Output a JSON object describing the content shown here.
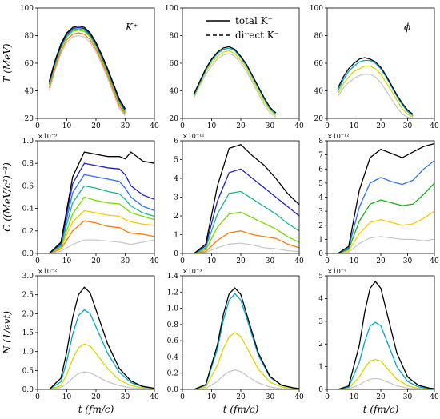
{
  "legend": {
    "solid_label": "total K⁻",
    "dashed_label": "direct K⁻"
  },
  "colors": [
    "#c8c8c8",
    "#e8151c",
    "#ff7a00",
    "#ffc800",
    "#d8d800",
    "#7ad800",
    "#15b015",
    "#18b58a",
    "#00a6c8",
    "#2d6ff2",
    "#2020c0",
    "#6a0aa8",
    "#000000"
  ],
  "panel_labels": [
    "K⁺",
    "ϕ"
  ],
  "axes": {
    "xlabel": "t (fm/c)",
    "ylabels": [
      "T (MeV)",
      "C ((MeV/c²)⁻³)",
      "N (1/evt)"
    ],
    "xticks": [
      "0",
      "10",
      "20",
      "30",
      "40"
    ]
  },
  "chart_data": [
    {
      "type": "line",
      "panel": "K+ temperature",
      "ylim": [
        20,
        100
      ],
      "yticks": [
        "20",
        "40",
        "60",
        "80",
        "100"
      ],
      "exponent": "",
      "x": [
        4,
        6,
        8,
        10,
        12,
        14,
        16,
        18,
        20,
        22,
        24,
        26,
        28,
        30
      ],
      "series": [
        {
          "values": [
            40,
            55,
            67,
            75,
            79,
            80,
            79,
            75,
            68,
            59,
            49,
            38,
            27,
            22
          ]
        },
        {
          "values": [
            42,
            57,
            69,
            77,
            81,
            82,
            81,
            77,
            70,
            61,
            51,
            40,
            29,
            23
          ]
        },
        {
          "values": [
            44,
            59,
            71,
            79,
            83,
            84,
            83,
            79,
            72,
            63,
            53,
            42,
            31,
            24
          ]
        },
        {
          "values": [
            45,
            60,
            72,
            80,
            84,
            85,
            84,
            80,
            73,
            64,
            54,
            43,
            32,
            25
          ]
        },
        {
          "values": [
            46,
            61,
            73,
            81,
            85,
            86,
            85,
            81,
            74,
            65,
            55,
            44,
            33,
            26
          ]
        },
        {
          "values": [
            47,
            62,
            74,
            82,
            86,
            87,
            86,
            82,
            75,
            66,
            56,
            45,
            34,
            27
          ]
        }
      ]
    },
    {
      "type": "line",
      "panel": "K- temperature",
      "ylim": [
        20,
        100
      ],
      "yticks": [
        "20",
        "40",
        "60",
        "80",
        "100"
      ],
      "exponent": "",
      "x": [
        4,
        6,
        8,
        10,
        12,
        14,
        16,
        18,
        20,
        22,
        24,
        26,
        28,
        30,
        32
      ],
      "series": [
        {
          "values": [
            35,
            44,
            52,
            58,
            63,
            66,
            67,
            65,
            60,
            54,
            46,
            38,
            30,
            24,
            21
          ]
        },
        {
          "values": [
            36,
            45,
            54,
            60,
            65,
            68,
            69,
            67,
            62,
            56,
            48,
            40,
            32,
            26,
            22
          ]
        },
        {
          "values": [
            37,
            46,
            55,
            62,
            67,
            70,
            71,
            69,
            64,
            58,
            50,
            42,
            34,
            27,
            23
          ]
        },
        {
          "values": [
            38,
            47,
            56,
            63,
            68,
            71,
            72,
            70,
            65,
            59,
            51,
            43,
            35,
            28,
            24
          ]
        }
      ]
    },
    {
      "type": "line",
      "panel": "phi temperature",
      "ylim": [
        20,
        100
      ],
      "yticks": [
        "20",
        "40",
        "60",
        "80",
        "100"
      ],
      "exponent": "",
      "x": [
        4,
        6,
        8,
        10,
        12,
        14,
        16,
        18,
        20,
        22,
        24,
        26,
        28,
        30,
        32
      ],
      "series": [
        {
          "values": [
            36,
            42,
            46,
            49,
            51,
            52,
            52,
            50,
            46,
            40,
            34,
            28,
            23,
            21,
            20
          ]
        },
        {
          "values": [
            38,
            45,
            50,
            54,
            56,
            58,
            58,
            56,
            52,
            46,
            40,
            33,
            27,
            23,
            21
          ]
        },
        {
          "values": [
            40,
            48,
            54,
            58,
            61,
            62,
            62,
            60,
            56,
            50,
            43,
            36,
            30,
            25,
            22
          ]
        },
        {
          "values": [
            42,
            50,
            56,
            60,
            63,
            64,
            63,
            61,
            57,
            51,
            44,
            37,
            31,
            26,
            23
          ]
        }
      ]
    },
    {
      "type": "line",
      "panel": "K+ C",
      "ylim": [
        0,
        1.0
      ],
      "yticks": [
        "0.0",
        "0.2",
        "0.4",
        "0.6",
        "0.8",
        "1.0"
      ],
      "exponent": "×10⁻⁹",
      "x": [
        4,
        8,
        12,
        16,
        20,
        24,
        28,
        30,
        32,
        36,
        40
      ],
      "series": [
        {
          "values": [
            0,
            0.02,
            0.08,
            0.12,
            0.12,
            0.11,
            0.1,
            0.09,
            0.08,
            0.1,
            0.12
          ]
        },
        {
          "values": [
            0,
            0.04,
            0.2,
            0.29,
            0.27,
            0.24,
            0.23,
            0.2,
            0.18,
            0.17,
            0.15
          ]
        },
        {
          "values": [
            0,
            0.05,
            0.28,
            0.38,
            0.36,
            0.34,
            0.33,
            0.3,
            0.28,
            0.26,
            0.25
          ]
        },
        {
          "values": [
            0,
            0.06,
            0.35,
            0.5,
            0.47,
            0.45,
            0.44,
            0.4,
            0.36,
            0.33,
            0.3
          ]
        },
        {
          "values": [
            0,
            0.07,
            0.45,
            0.6,
            0.58,
            0.55,
            0.53,
            0.48,
            0.42,
            0.36,
            0.33
          ]
        },
        {
          "values": [
            0,
            0.08,
            0.54,
            0.7,
            0.68,
            0.66,
            0.64,
            0.58,
            0.5,
            0.42,
            0.38
          ]
        },
        {
          "values": [
            0,
            0.09,
            0.62,
            0.8,
            0.78,
            0.76,
            0.75,
            0.7,
            0.6,
            0.52,
            0.48
          ]
        },
        {
          "values": [
            0,
            0.1,
            0.68,
            0.9,
            0.88,
            0.86,
            0.86,
            0.84,
            0.9,
            0.82,
            0.8
          ]
        }
      ]
    },
    {
      "type": "line",
      "panel": "K- C",
      "ylim": [
        0,
        6
      ],
      "yticks": [
        "0",
        "1",
        "2",
        "3",
        "4",
        "5",
        "6"
      ],
      "exponent": "×10⁻¹¹",
      "x": [
        4,
        8,
        12,
        16,
        20,
        24,
        28,
        32,
        36,
        40
      ],
      "series": [
        {
          "values": [
            0,
            0.05,
            0.3,
            0.5,
            0.55,
            0.45,
            0.3,
            0.25,
            0.15,
            0.1
          ]
        },
        {
          "values": [
            0,
            0.1,
            0.7,
            1.1,
            1.2,
            1.0,
            0.9,
            0.8,
            0.5,
            0.3
          ]
        },
        {
          "values": [
            0,
            0.2,
            1.4,
            2.1,
            2.2,
            1.9,
            1.6,
            1.3,
            0.9,
            0.6
          ]
        },
        {
          "values": [
            0,
            0.3,
            2.1,
            3.2,
            3.3,
            2.9,
            2.5,
            2.1,
            1.6,
            1.2
          ]
        },
        {
          "values": [
            0,
            0.4,
            2.8,
            4.3,
            4.5,
            4.0,
            3.5,
            3.0,
            2.5,
            2.0
          ]
        },
        {
          "values": [
            0,
            0.5,
            3.6,
            5.6,
            5.8,
            5.2,
            4.7,
            4.0,
            3.2,
            2.6
          ]
        }
      ]
    },
    {
      "type": "line",
      "panel": "phi C",
      "ylim": [
        0,
        8
      ],
      "yticks": [
        "0",
        "1",
        "2",
        "3",
        "4",
        "5",
        "6",
        "7",
        "8"
      ],
      "exponent": "×10⁻¹²",
      "x": [
        4,
        8,
        12,
        16,
        20,
        24,
        28,
        32,
        36,
        40
      ],
      "series": [
        {
          "values": [
            0,
            0.1,
            0.7,
            1.1,
            1.2,
            1.1,
            1.0,
            1.0,
            0.9,
            1.0
          ]
        },
        {
          "values": [
            0,
            0.2,
            1.4,
            2.2,
            2.4,
            2.2,
            2.0,
            2.1,
            2.5,
            3.0
          ]
        },
        {
          "values": [
            0,
            0.3,
            2.3,
            3.5,
            3.8,
            3.6,
            3.4,
            3.5,
            4.2,
            5.0
          ]
        },
        {
          "values": [
            0,
            0.4,
            3.3,
            5.0,
            5.4,
            5.1,
            4.9,
            5.2,
            6.0,
            6.6
          ]
        },
        {
          "values": [
            0,
            0.5,
            4.5,
            6.8,
            7.4,
            7.1,
            6.8,
            7.2,
            7.6,
            7.8
          ]
        }
      ]
    },
    {
      "type": "line",
      "panel": "K+ N",
      "ylim": [
        0,
        3.0
      ],
      "yticks": [
        "0.0",
        "0.5",
        "1.0",
        "1.5",
        "2.0",
        "2.5",
        "3.0"
      ],
      "exponent": "×10⁻²",
      "x": [
        4,
        8,
        10,
        12,
        14,
        16,
        18,
        20,
        24,
        28,
        32,
        36,
        40
      ],
      "series": [
        {
          "values": [
            0,
            0.05,
            0.15,
            0.3,
            0.42,
            0.46,
            0.44,
            0.36,
            0.2,
            0.1,
            0.04,
            0.02,
            0.01
          ]
        },
        {
          "values": [
            0,
            0.1,
            0.4,
            0.8,
            1.1,
            1.2,
            1.15,
            0.95,
            0.55,
            0.25,
            0.1,
            0.04,
            0.02
          ]
        },
        {
          "values": [
            0,
            0.2,
            0.75,
            1.45,
            1.95,
            2.1,
            2.0,
            1.65,
            0.95,
            0.45,
            0.18,
            0.07,
            0.03
          ]
        },
        {
          "values": [
            0,
            0.3,
            1.0,
            1.9,
            2.5,
            2.7,
            2.55,
            2.1,
            1.2,
            0.55,
            0.22,
            0.08,
            0.03
          ]
        }
      ]
    },
    {
      "type": "line",
      "panel": "K- N",
      "ylim": [
        0,
        1.4
      ],
      "yticks": [
        "0.0",
        "0.2",
        "0.4",
        "0.6",
        "0.8",
        "1.0",
        "1.2",
        "1.4"
      ],
      "exponent": "×10⁻³",
      "x": [
        4,
        8,
        12,
        14,
        16,
        18,
        20,
        22,
        26,
        30,
        34,
        38,
        40
      ],
      "series": [
        {
          "values": [
            0,
            0.01,
            0.1,
            0.17,
            0.22,
            0.24,
            0.22,
            0.17,
            0.08,
            0.03,
            0.01,
            0.005,
            0
          ]
        },
        {
          "values": [
            0,
            0.03,
            0.3,
            0.5,
            0.65,
            0.7,
            0.65,
            0.52,
            0.25,
            0.09,
            0.03,
            0.01,
            0.005
          ]
        },
        {
          "values": [
            0,
            0.05,
            0.5,
            0.85,
            1.1,
            1.18,
            1.1,
            0.88,
            0.42,
            0.15,
            0.05,
            0.02,
            0.01
          ]
        },
        {
          "values": [
            0,
            0.06,
            0.55,
            0.92,
            1.18,
            1.25,
            1.17,
            0.93,
            0.45,
            0.16,
            0.05,
            0.02,
            0.01
          ]
        }
      ]
    },
    {
      "type": "line",
      "panel": "phi N",
      "ylim": [
        0,
        5
      ],
      "yticks": [
        "0",
        "1",
        "2",
        "3",
        "4",
        "5"
      ],
      "exponent": "×10⁻⁴",
      "x": [
        4,
        8,
        12,
        14,
        16,
        18,
        20,
        22,
        26,
        30,
        34,
        38,
        40
      ],
      "series": [
        {
          "values": [
            0,
            0.02,
            0.2,
            0.35,
            0.45,
            0.48,
            0.45,
            0.35,
            0.16,
            0.06,
            0.02,
            0.01,
            0.005
          ]
        },
        {
          "values": [
            0,
            0.05,
            0.55,
            0.95,
            1.25,
            1.32,
            1.25,
            0.98,
            0.45,
            0.16,
            0.05,
            0.02,
            0.01
          ]
        },
        {
          "values": [
            0,
            0.1,
            1.2,
            2.1,
            2.8,
            2.95,
            2.8,
            2.2,
            1.0,
            0.35,
            0.11,
            0.04,
            0.02
          ]
        },
        {
          "values": [
            0,
            0.15,
            1.95,
            3.4,
            4.45,
            4.75,
            4.45,
            3.5,
            1.6,
            0.55,
            0.18,
            0.06,
            0.03
          ]
        }
      ]
    }
  ]
}
